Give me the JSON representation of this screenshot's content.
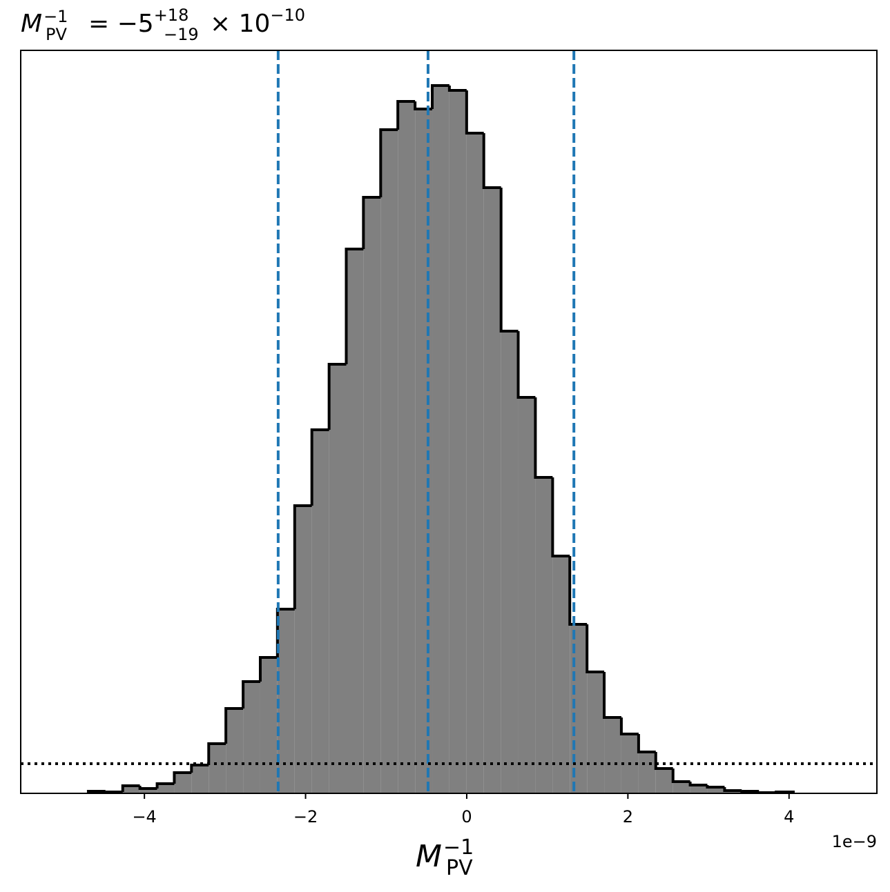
{
  "chart_data": {
    "type": "histogram",
    "title": {
      "symbol": "M",
      "subscript": "PV",
      "superscript": "−1",
      "value": "= −5",
      "upper": "+18",
      "lower": "−19",
      "times": "× 10",
      "exponent": "−10"
    },
    "xlabel": {
      "symbol": "M",
      "subscript": "PV",
      "superscript": "−1"
    },
    "x_offset_label": "1e−9",
    "bins": [
      -4.696,
      -4.483,
      -4.269,
      -4.056,
      -3.842,
      -3.629,
      -3.416,
      -3.202,
      -2.989,
      -2.775,
      -2.562,
      -2.349,
      -2.135,
      -1.922,
      -1.708,
      -1.495,
      -1.282,
      -1.068,
      -0.855,
      -0.641,
      -0.428,
      -0.215,
      -0.001,
      0.212,
      0.426,
      0.639,
      0.852,
      1.066,
      1.279,
      1.493,
      1.706,
      1.919,
      2.133,
      2.346,
      2.56,
      2.773,
      2.986,
      3.2,
      3.413,
      3.627,
      3.84,
      4.053
    ],
    "counts": [
      3,
      2,
      11,
      7,
      14,
      30,
      41,
      72,
      123,
      162,
      197,
      267,
      417,
      527,
      622,
      789,
      864,
      962,
      1003,
      992,
      1026,
      1019,
      957,
      878,
      670,
      574,
      458,
      344,
      245,
      176,
      110,
      86,
      60,
      36,
      17,
      12,
      9,
      4,
      3,
      1,
      2
    ],
    "color": "#808080",
    "edge_color": "#000000",
    "xlim": [
      -5.535,
      5.09
    ],
    "ylim": [
      0,
      1077
    ],
    "xticks": [
      {
        "value": -4,
        "label": "−4"
      },
      {
        "value": -2,
        "label": "−2"
      },
      0,
      2,
      4
    ],
    "vlines": [
      -2.34,
      -0.48,
      1.33
    ],
    "vline_color": "#1f77b4",
    "hline": 43,
    "hline_color": "#000000"
  }
}
